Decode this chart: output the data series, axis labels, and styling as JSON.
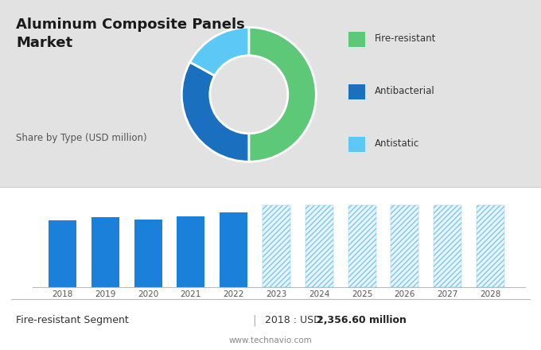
{
  "title": "Aluminum Composite Panels\nMarket",
  "subtitle": "Share by Type (USD million)",
  "pie_values": [
    50,
    33,
    17
  ],
  "pie_colors": [
    "#5DC878",
    "#1A6FBF",
    "#5BC8F5"
  ],
  "pie_labels": [
    "Fire-resistant",
    "Antibacterial",
    "Antistatic"
  ],
  "bar_years_solid": [
    2018,
    2019,
    2020,
    2021,
    2022
  ],
  "bar_values_solid": [
    2357,
    2480,
    2390,
    2500,
    2650
  ],
  "bar_years_hatched": [
    2023,
    2024,
    2025,
    2026,
    2027,
    2028
  ],
  "bar_values_hatched": [
    2900,
    2900,
    2900,
    2900,
    2900,
    2900
  ],
  "bar_color_solid": "#1A80D9",
  "bar_color_hatched_face": "#E8F4FF",
  "bar_color_hatched_edge": "#7CC8F0",
  "bg_top": "#E2E2E2",
  "bg_bottom": "#FFFFFF",
  "footer_left": "Fire-resistant Segment",
  "footer_right_label": "2018 : USD ",
  "footer_right_value": "2,356.60 million",
  "footer_url": "www.technavio.com",
  "title_fontsize": 13,
  "subtitle_fontsize": 8.5,
  "legend_fontsize": 8.5,
  "footer_fontsize": 9
}
